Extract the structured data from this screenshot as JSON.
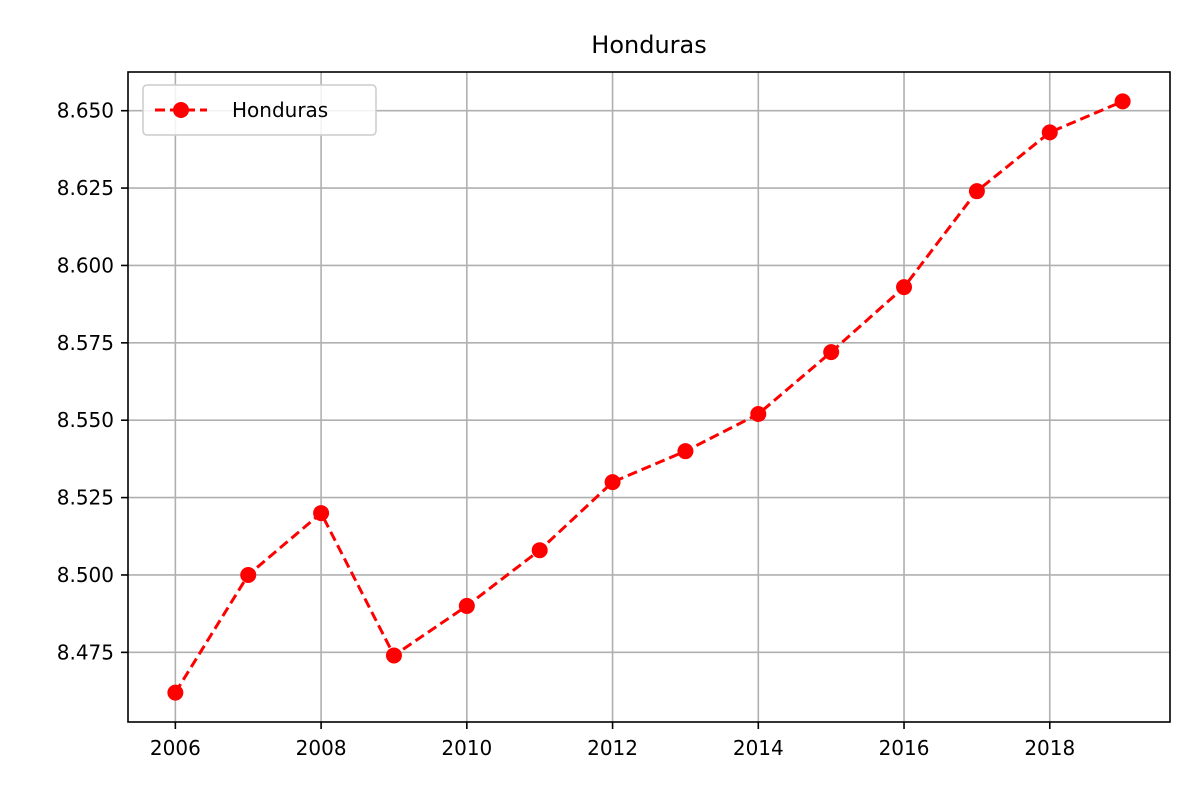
{
  "chart_data": {
    "type": "line",
    "title": "Honduras",
    "xlabel": "",
    "ylabel": "",
    "x": [
      2006,
      2007,
      2008,
      2009,
      2010,
      2011,
      2012,
      2013,
      2014,
      2015,
      2016,
      2017,
      2018,
      2019
    ],
    "series": [
      {
        "name": "Honduras",
        "values": [
          8.462,
          8.5,
          8.52,
          8.474,
          8.49,
          8.508,
          8.53,
          8.54,
          8.552,
          8.572,
          8.593,
          8.624,
          8.643,
          8.653
        ],
        "color": "#ff0000",
        "line_style": "dashed",
        "marker": "circle"
      }
    ],
    "xlim": [
      2005.35,
      2019.65
    ],
    "ylim": [
      8.4525,
      8.6625
    ],
    "x_ticks": [
      "2006",
      "2008",
      "2010",
      "2012",
      "2014",
      "2016",
      "2018"
    ],
    "y_ticks": [
      "8.475",
      "8.500",
      "8.525",
      "8.550",
      "8.575",
      "8.600",
      "8.625",
      "8.650"
    ],
    "grid": true,
    "legend_position": "top-left"
  }
}
